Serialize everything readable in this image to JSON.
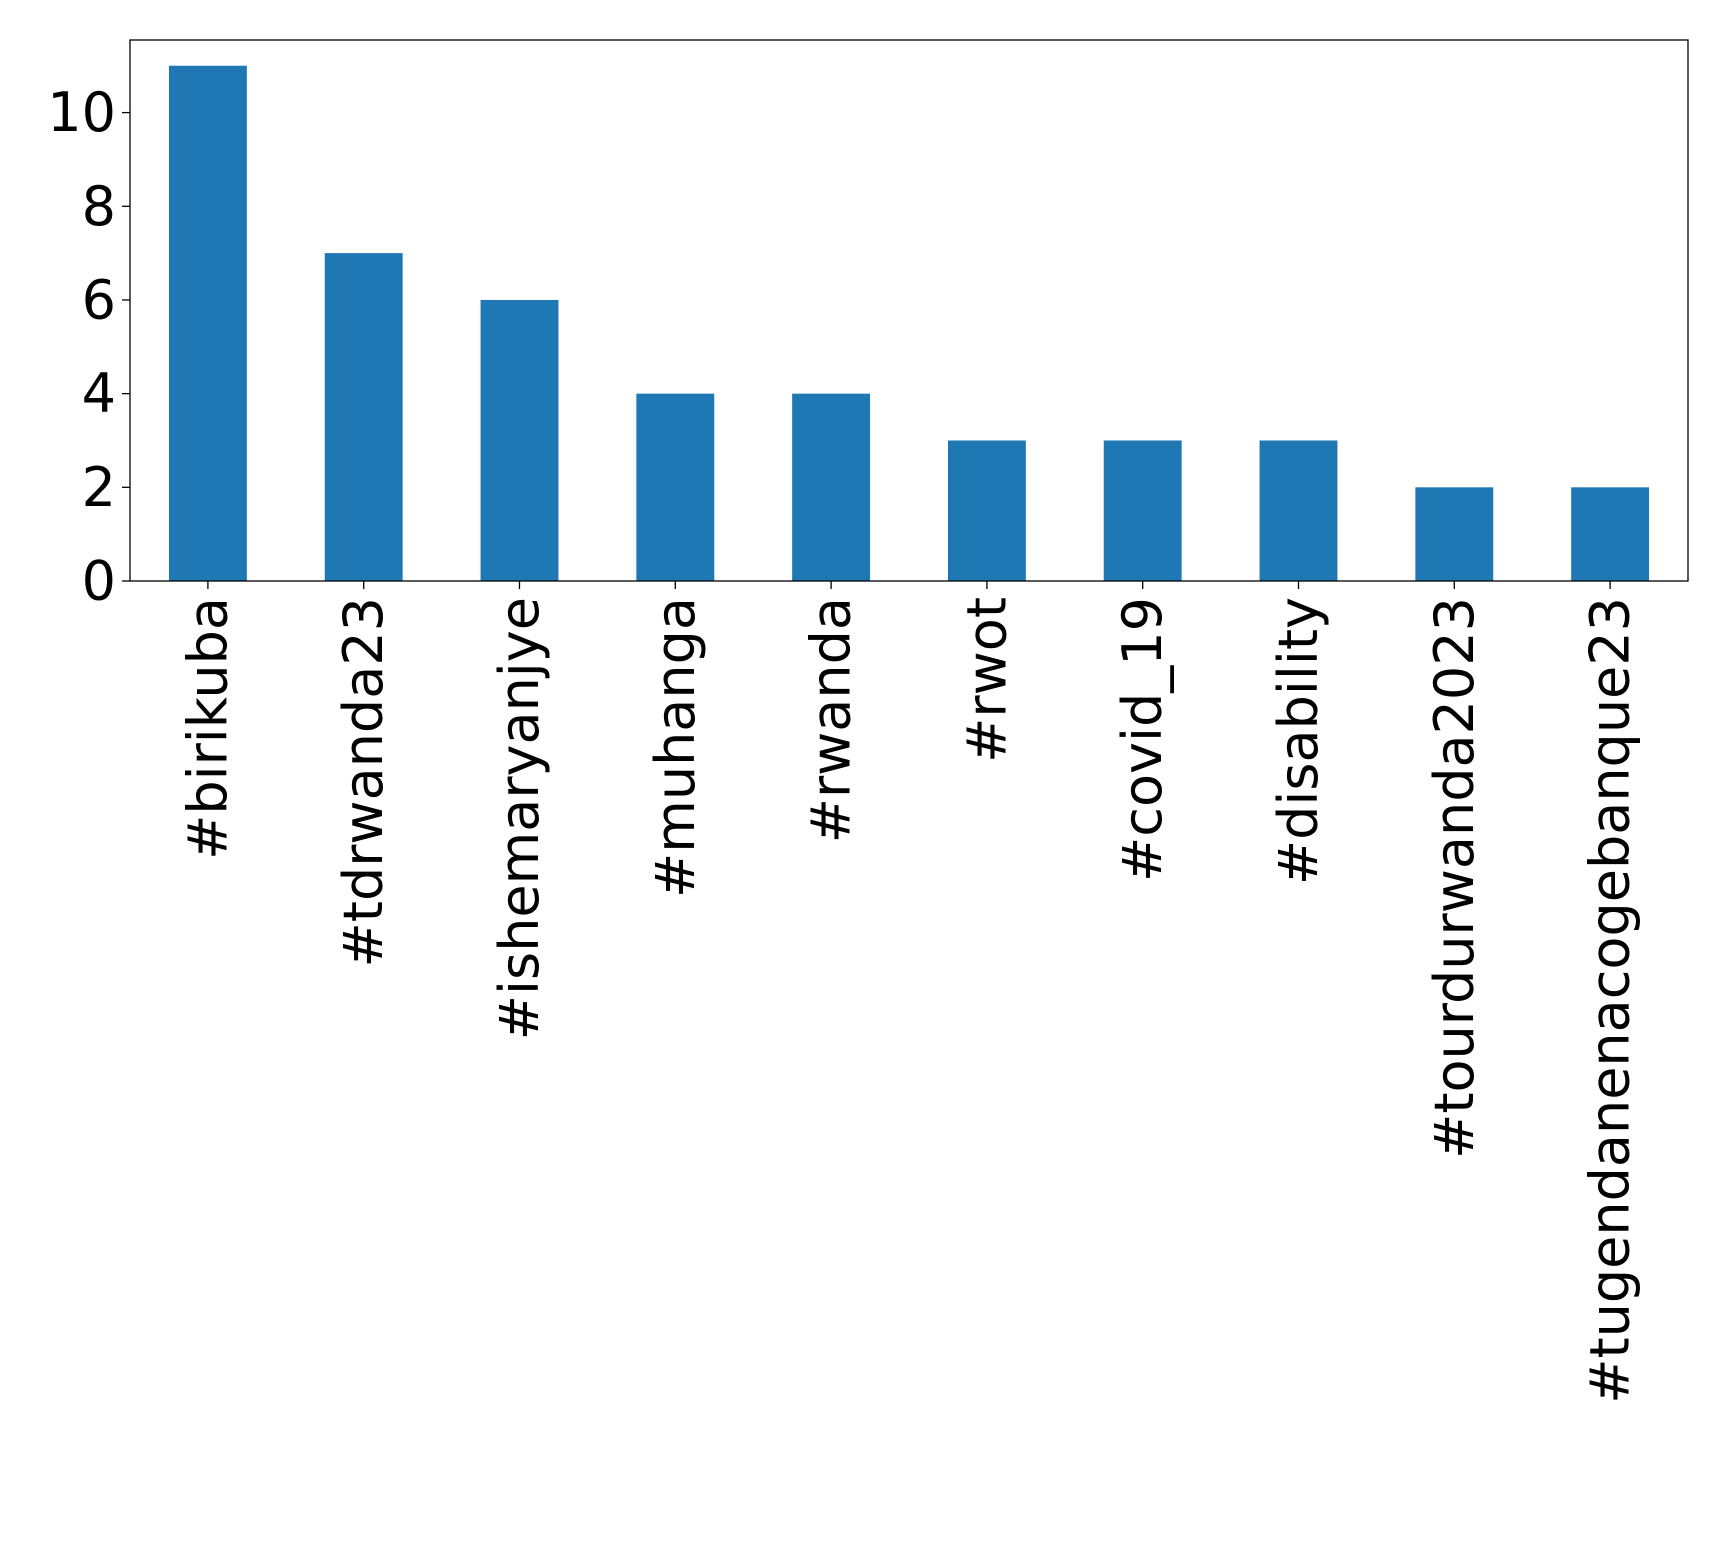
{
  "chart_data": {
    "type": "bar",
    "categories": [
      "#birikuba",
      "#tdrwanda23",
      "#ishemaryanjye",
      "#muhanga",
      "#rwanda",
      "#rwot",
      "#covid_19",
      "#disability",
      "#tourdurwanda2023",
      "#tugendanenacogebanque23"
    ],
    "values": [
      11,
      7,
      6,
      4,
      4,
      3,
      3,
      3,
      2,
      2
    ],
    "yticks": [
      0,
      2,
      4,
      6,
      8,
      10
    ],
    "ylim": [
      0,
      11.55
    ],
    "title": "",
    "xlabel": "",
    "ylabel": "",
    "bar_color": "#1f77b4",
    "grid": false,
    "legend": "none",
    "x_tick_rotation": "vertical"
  }
}
